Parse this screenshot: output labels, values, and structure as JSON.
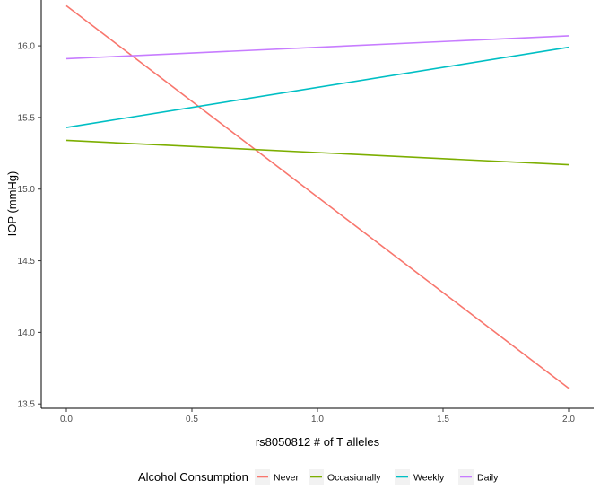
{
  "chart_data": {
    "type": "line",
    "title": "",
    "xlabel": "rs8050812 # of T alleles",
    "ylabel": "IOP (mmHg)",
    "xlim": [
      -0.1,
      2.1
    ],
    "ylim": [
      13.47,
      16.32
    ],
    "xticks": [
      0.0,
      0.5,
      1.0,
      1.5,
      2.0
    ],
    "xtick_labels": [
      "0.0",
      "0.5",
      "1.0",
      "1.5",
      "2.0"
    ],
    "yticks": [
      13.5,
      14.0,
      14.5,
      15.0,
      15.5,
      16.0
    ],
    "ytick_labels": [
      "13.5",
      "14.0",
      "14.5",
      "15.0",
      "15.5",
      "16.0"
    ],
    "grid": false,
    "legend": {
      "title": "Alcohol Consumption",
      "placement": "bottom"
    },
    "series": [
      {
        "name": "Never",
        "color": "#F8766D",
        "x": [
          0,
          2
        ],
        "y": [
          16.28,
          13.61
        ]
      },
      {
        "name": "Occasionally",
        "color": "#7CAE00",
        "x": [
          0,
          2
        ],
        "y": [
          15.34,
          15.17
        ]
      },
      {
        "name": "Weekly",
        "color": "#00BFC4",
        "x": [
          0,
          2
        ],
        "y": [
          15.43,
          15.99
        ]
      },
      {
        "name": "Daily",
        "color": "#C77CFF",
        "x": [
          0,
          2
        ],
        "y": [
          15.91,
          16.07
        ]
      }
    ]
  }
}
